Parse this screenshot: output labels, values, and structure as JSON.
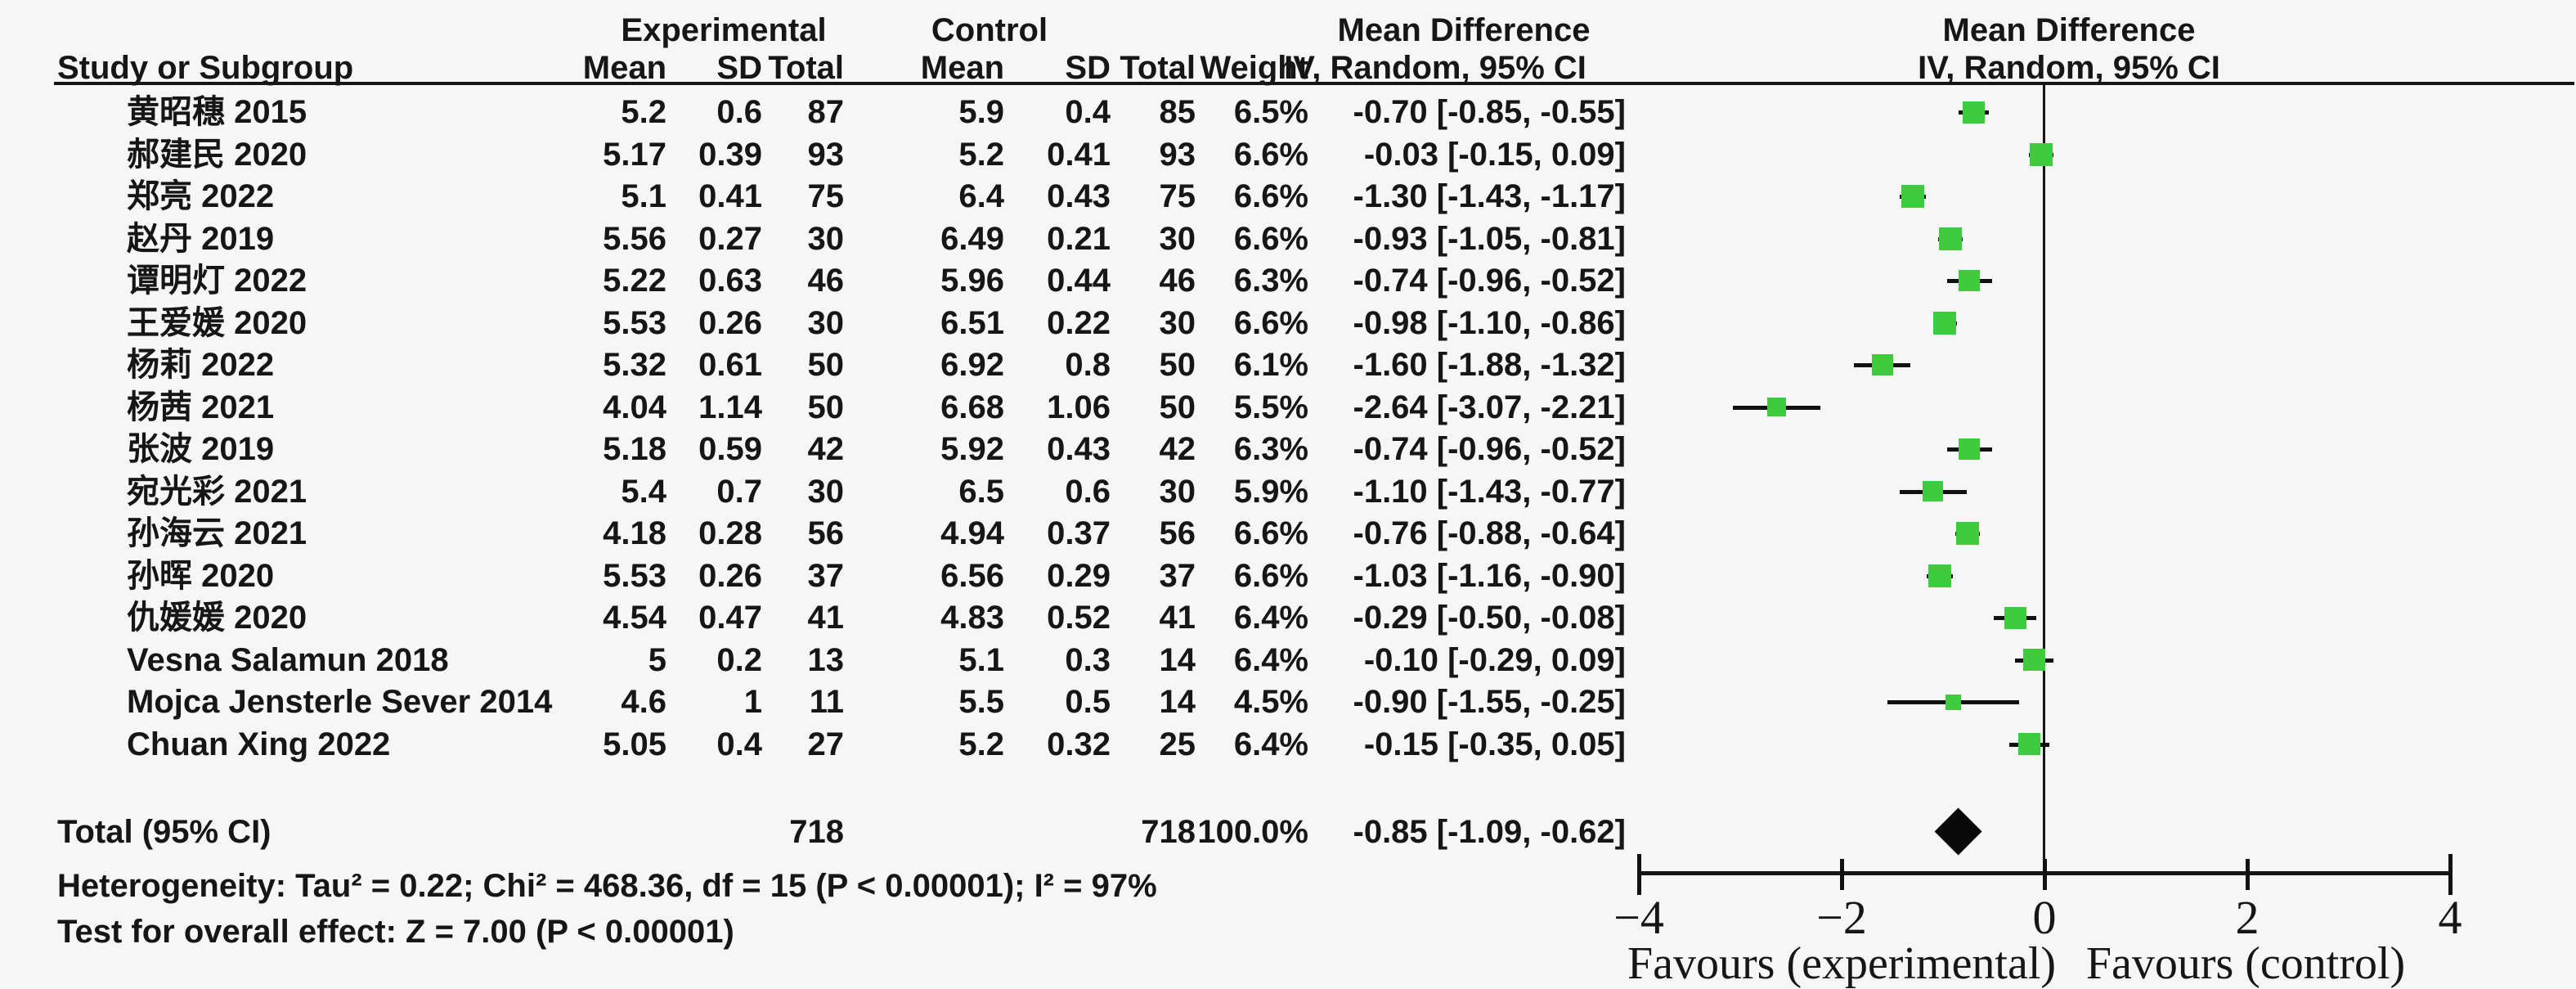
{
  "header": {
    "group_experimental": "Experimental",
    "group_control": "Control",
    "group_md_text": "Mean Difference",
    "group_md_plot": "Mean Difference",
    "col_study": "Study or Subgroup",
    "col_mean_exp": "Mean",
    "col_sd_exp": "SD",
    "col_total_exp": "Total",
    "col_mean_ctrl": "Mean",
    "col_sd_ctrl": "SD",
    "col_total_ctrl": "Total",
    "col_weight": "Weight",
    "col_ci_text": "IV, Random, 95% CI",
    "col_ci_plot": "IV, Random, 95% CI"
  },
  "chart_data": {
    "type": "forest",
    "effect_measure": "Mean Difference (IV, Random, 95% CI)",
    "x_axis": {
      "min": -4,
      "max": 4,
      "ticks": [
        -4,
        -2,
        0,
        2,
        4
      ]
    },
    "favours_left": "Favours (experimental)",
    "favours_right": "Favours (control)",
    "studies": [
      {
        "name": "黄昭穗 2015",
        "em": "5.2",
        "esd": "0.6",
        "en": "87",
        "cm": "5.9",
        "csd": "0.4",
        "cn": "85",
        "w": "6.5%",
        "wv": 6.5,
        "ci": "-0.70 [-0.85, -0.55]",
        "md": -0.7,
        "lo": -0.85,
        "hi": -0.55
      },
      {
        "name": "郝建民 2020",
        "em": "5.17",
        "esd": "0.39",
        "en": "93",
        "cm": "5.2",
        "csd": "0.41",
        "cn": "93",
        "w": "6.6%",
        "wv": 6.6,
        "ci": "-0.03 [-0.15, 0.09]",
        "md": -0.03,
        "lo": -0.15,
        "hi": 0.09
      },
      {
        "name": "郑亮 2022",
        "em": "5.1",
        "esd": "0.41",
        "en": "75",
        "cm": "6.4",
        "csd": "0.43",
        "cn": "75",
        "w": "6.6%",
        "wv": 6.6,
        "ci": "-1.30 [-1.43, -1.17]",
        "md": -1.3,
        "lo": -1.43,
        "hi": -1.17
      },
      {
        "name": "赵丹 2019",
        "em": "5.56",
        "esd": "0.27",
        "en": "30",
        "cm": "6.49",
        "csd": "0.21",
        "cn": "30",
        "w": "6.6%",
        "wv": 6.6,
        "ci": "-0.93 [-1.05, -0.81]",
        "md": -0.93,
        "lo": -1.05,
        "hi": -0.81
      },
      {
        "name": "谭明灯 2022",
        "em": "5.22",
        "esd": "0.63",
        "en": "46",
        "cm": "5.96",
        "csd": "0.44",
        "cn": "46",
        "w": "6.3%",
        "wv": 6.3,
        "ci": "-0.74 [-0.96, -0.52]",
        "md": -0.74,
        "lo": -0.96,
        "hi": -0.52
      },
      {
        "name": "王爱媛 2020",
        "em": "5.53",
        "esd": "0.26",
        "en": "30",
        "cm": "6.51",
        "csd": "0.22",
        "cn": "30",
        "w": "6.6%",
        "wv": 6.6,
        "ci": "-0.98 [-1.10, -0.86]",
        "md": -0.98,
        "lo": -1.1,
        "hi": -0.86
      },
      {
        "name": "杨莉 2022",
        "em": "5.32",
        "esd": "0.61",
        "en": "50",
        "cm": "6.92",
        "csd": "0.8",
        "cn": "50",
        "w": "6.1%",
        "wv": 6.1,
        "ci": "-1.60 [-1.88, -1.32]",
        "md": -1.6,
        "lo": -1.88,
        "hi": -1.32
      },
      {
        "name": "杨茜 2021",
        "em": "4.04",
        "esd": "1.14",
        "en": "50",
        "cm": "6.68",
        "csd": "1.06",
        "cn": "50",
        "w": "5.5%",
        "wv": 5.5,
        "ci": "-2.64 [-3.07, -2.21]",
        "md": -2.64,
        "lo": -3.07,
        "hi": -2.21
      },
      {
        "name": "张波 2019",
        "em": "5.18",
        "esd": "0.59",
        "en": "42",
        "cm": "5.92",
        "csd": "0.43",
        "cn": "42",
        "w": "6.3%",
        "wv": 6.3,
        "ci": "-0.74 [-0.96, -0.52]",
        "md": -0.74,
        "lo": -0.96,
        "hi": -0.52
      },
      {
        "name": "宛光彩 2021",
        "em": "5.4",
        "esd": "0.7",
        "en": "30",
        "cm": "6.5",
        "csd": "0.6",
        "cn": "30",
        "w": "5.9%",
        "wv": 5.9,
        "ci": "-1.10 [-1.43, -0.77]",
        "md": -1.1,
        "lo": -1.43,
        "hi": -0.77
      },
      {
        "name": "孙海云 2021",
        "em": "4.18",
        "esd": "0.28",
        "en": "56",
        "cm": "4.94",
        "csd": "0.37",
        "cn": "56",
        "w": "6.6%",
        "wv": 6.6,
        "ci": "-0.76 [-0.88, -0.64]",
        "md": -0.76,
        "lo": -0.88,
        "hi": -0.64
      },
      {
        "name": "孙晖 2020",
        "em": "5.53",
        "esd": "0.26",
        "en": "37",
        "cm": "6.56",
        "csd": "0.29",
        "cn": "37",
        "w": "6.6%",
        "wv": 6.6,
        "ci": "-1.03 [-1.16, -0.90]",
        "md": -1.03,
        "lo": -1.16,
        "hi": -0.9
      },
      {
        "name": "仇媛媛 2020",
        "em": "4.54",
        "esd": "0.47",
        "en": "41",
        "cm": "4.83",
        "csd": "0.52",
        "cn": "41",
        "w": "6.4%",
        "wv": 6.4,
        "ci": "-0.29 [-0.50, -0.08]",
        "md": -0.29,
        "lo": -0.5,
        "hi": -0.08
      },
      {
        "name": "Vesna Salamun 2018",
        "em": "5",
        "esd": "0.2",
        "en": "13",
        "cm": "5.1",
        "csd": "0.3",
        "cn": "14",
        "w": "6.4%",
        "wv": 6.4,
        "ci": "-0.10 [-0.29, 0.09]",
        "md": -0.1,
        "lo": -0.29,
        "hi": 0.09
      },
      {
        "name": "Mojca Jensterle Sever 2014",
        "em": "4.6",
        "esd": "1",
        "en": "11",
        "cm": "5.5",
        "csd": "0.5",
        "cn": "14",
        "w": "4.5%",
        "wv": 4.5,
        "ci": "-0.90 [-1.55, -0.25]",
        "md": -0.9,
        "lo": -1.55,
        "hi": -0.25
      },
      {
        "name": "Chuan Xing 2022",
        "em": "5.05",
        "esd": "0.4",
        "en": "27",
        "cm": "5.2",
        "csd": "0.32",
        "cn": "25",
        "w": "6.4%",
        "wv": 6.4,
        "ci": "-0.15 [-0.35, 0.05]",
        "md": -0.15,
        "lo": -0.35,
        "hi": 0.05
      }
    ],
    "total": {
      "label": "Total (95% CI)",
      "en": "718",
      "cn": "718",
      "w": "100.0%",
      "ci": "-0.85 [-1.09, -0.62]",
      "md": -0.85,
      "lo": -1.09,
      "hi": -0.62
    },
    "footer": {
      "heterogeneity": "Heterogeneity: Tau² = 0.22; Chi² = 468.36, df = 15 (P < 0.00001); I² = 97%",
      "overall_effect": "Test for overall effect: Z = 7.00 (P < 0.00001)"
    },
    "colors": {
      "square": "#3ecb3e",
      "line": "#111111",
      "diamond": "#0a0a0a",
      "background": "#f6f6f6"
    }
  }
}
